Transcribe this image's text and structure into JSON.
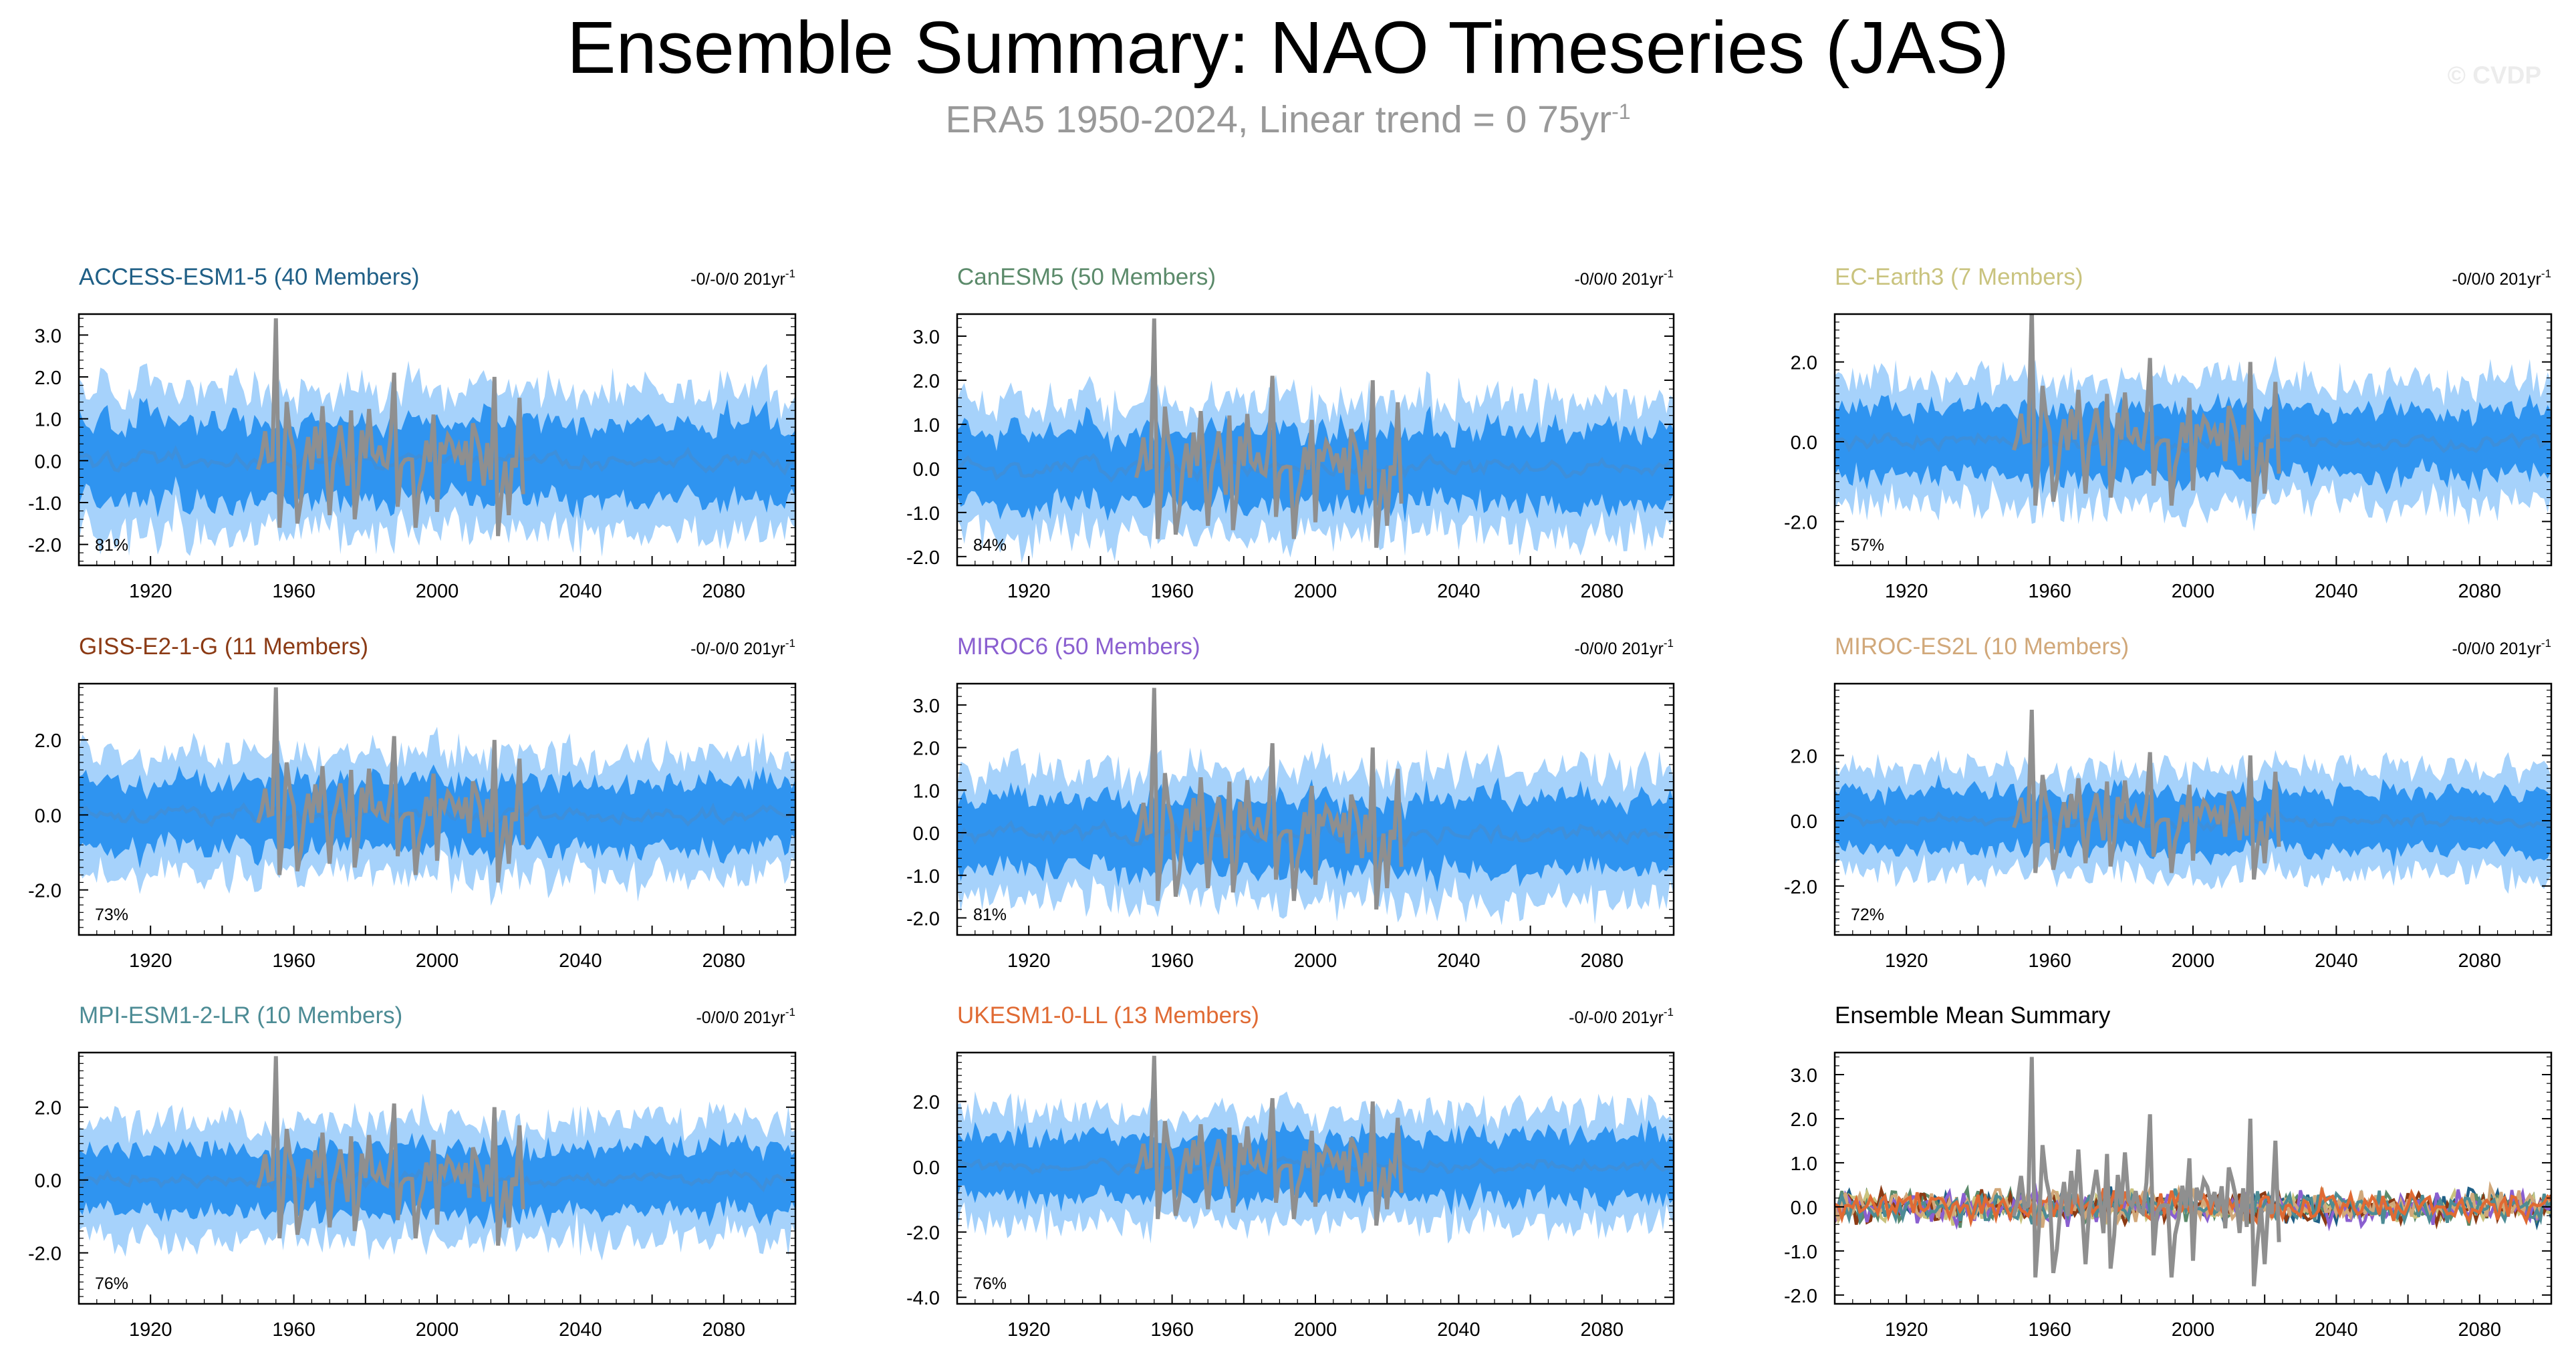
{
  "header": {
    "title": "Ensemble Summary: NAO Timeseries (JAS)",
    "subtitle": "ERA5 1950-2024, Linear trend = 0 75yr",
    "subtitle_sup": "-1",
    "credit": "© CVDP"
  },
  "colors": {
    "band_outer": "#a6d2fb",
    "band_inner": "#2f94f0",
    "ensemble_mean": "#3d8fdb",
    "observations": "#8f8f8f"
  },
  "chart_data": [
    {
      "type": "area",
      "title": "ACCESS-ESM1-5 (40 Members)",
      "title_color": "#1f5f86",
      "trend": "-0/-0/0 201yr",
      "trend_sup": "-1",
      "percent": "81%",
      "yticks": [
        "3.0",
        "2.0",
        "1.0",
        "0.0",
        "-1.0",
        "-2.0"
      ],
      "ylim": [
        -2.5,
        3.5
      ],
      "xticks": [
        "1920",
        "1960",
        "2000",
        "2040",
        "2080"
      ],
      "xlim": [
        1900,
        2100
      ],
      "spread": 1.7
    },
    {
      "type": "area",
      "title": "CanESM5 (50 Members)",
      "title_color": "#5b8a6a",
      "trend": "-0/0/0 201yr",
      "trend_sup": "-1",
      "percent": "84%",
      "yticks": [
        "3.0",
        "2.0",
        "1.0",
        "0.0",
        "-1.0",
        "-2.0"
      ],
      "ylim": [
        -2.2,
        3.5
      ],
      "xticks": [
        "1920",
        "1960",
        "2000",
        "2040",
        "2080"
      ],
      "xlim": [
        1900,
        2100
      ],
      "spread": 1.5
    },
    {
      "type": "area",
      "title": "EC-Earth3 (7 Members)",
      "title_color": "#c9c37e",
      "trend": "-0/0/0 201yr",
      "trend_sup": "-1",
      "percent": "57%",
      "yticks": [
        "2.0",
        "0.0",
        "-2.0"
      ],
      "ylim": [
        -3.1,
        3.2
      ],
      "xticks": [
        "1920",
        "1960",
        "2000",
        "2040",
        "2080"
      ],
      "xlim": [
        1900,
        2100
      ],
      "spread": 1.5
    },
    {
      "type": "area",
      "title": "GISS-E2-1-G (11 Members)",
      "title_color": "#8b3a14",
      "trend": "-0/-0/0 201yr",
      "trend_sup": "-1",
      "percent": "73%",
      "yticks": [
        "2.0",
        "0.0",
        "-2.0"
      ],
      "ylim": [
        -3.2,
        3.5
      ],
      "xticks": [
        "1920",
        "1960",
        "2000",
        "2040",
        "2080"
      ],
      "xlim": [
        1900,
        2100
      ],
      "spread": 1.6
    },
    {
      "type": "area",
      "title": "MIROC6 (50 Members)",
      "title_color": "#8a5fd0",
      "trend": "-0/0/0 201yr",
      "trend_sup": "-1",
      "percent": "81%",
      "yticks": [
        "3.0",
        "2.0",
        "1.0",
        "0.0",
        "-1.0",
        "-2.0"
      ],
      "ylim": [
        -2.4,
        3.5
      ],
      "xticks": [
        "1920",
        "1960",
        "2000",
        "2040",
        "2080"
      ],
      "xlim": [
        1900,
        2100
      ],
      "spread": 1.5
    },
    {
      "type": "area",
      "title": "MIROC-ES2L (10 Members)",
      "title_color": "#d1a87a",
      "trend": "-0/0/0 201yr",
      "trend_sup": "-1",
      "percent": "72%",
      "yticks": [
        "2.0",
        "0.0",
        "-2.0"
      ],
      "ylim": [
        -3.5,
        4.2
      ],
      "xticks": [
        "1920",
        "1960",
        "2000",
        "2040",
        "2080"
      ],
      "xlim": [
        1900,
        2100
      ],
      "spread": 1.6
    },
    {
      "type": "area",
      "title": "MPI-ESM1-2-LR (10 Members)",
      "title_color": "#4d8c95",
      "trend": "-0/0/0 201yr",
      "trend_sup": "-1",
      "percent": "76%",
      "yticks": [
        "2.0",
        "0.0",
        "-2.0"
      ],
      "ylim": [
        -3.4,
        3.5
      ],
      "xticks": [
        "1920",
        "1960",
        "2000",
        "2040",
        "2080"
      ],
      "xlim": [
        1900,
        2100
      ],
      "spread": 1.6
    },
    {
      "type": "area",
      "title": "UKESM1-0-LL (13 Members)",
      "title_color": "#e06a33",
      "trend": "-0/-0/0 201yr",
      "trend_sup": "-1",
      "percent": "76%",
      "yticks": [
        "2.0",
        "0.0",
        "-2.0",
        "-4.0"
      ],
      "ylim": [
        -4.2,
        3.5
      ],
      "xticks": [
        "1920",
        "1960",
        "2000",
        "2040",
        "2080"
      ],
      "xlim": [
        1900,
        2100
      ],
      "spread": 1.7
    },
    {
      "type": "line",
      "title": "Ensemble Mean Summary",
      "title_color": "#000000",
      "trend": "",
      "trend_sup": "",
      "percent": "",
      "yticks": [
        "3.0",
        "2.0",
        "1.0",
        "0.0",
        "-1.0",
        "-2.0"
      ],
      "ylim": [
        -2.2,
        3.5
      ],
      "xticks": [
        "1920",
        "1960",
        "2000",
        "2040",
        "2080"
      ],
      "xlim": [
        1900,
        2100
      ],
      "series_colors": [
        "#1f5f86",
        "#5b8a6a",
        "#c9c37e",
        "#8b3a14",
        "#8a5fd0",
        "#d1a87a",
        "#4d8c95",
        "#e06a33"
      ]
    }
  ]
}
